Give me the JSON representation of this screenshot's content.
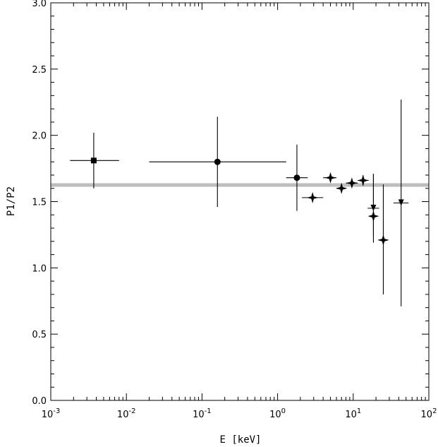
{
  "chart_data": {
    "type": "scatter",
    "xlabel": "E [keV]",
    "ylabel": "P1/P2",
    "xscale": "log",
    "xlim": [
      0.001,
      100
    ],
    "ylim": [
      0.0,
      3.0
    ],
    "x_tick_labels": [
      {
        "base": "10",
        "exp": "-3",
        "value": 0.001
      },
      {
        "base": "10",
        "exp": "-2",
        "value": 0.01
      },
      {
        "base": "10",
        "exp": "-1",
        "value": 0.1
      },
      {
        "base": "10",
        "exp": "0",
        "value": 1
      },
      {
        "base": "10",
        "exp": "1",
        "value": 10
      },
      {
        "base": "10",
        "exp": "2",
        "value": 100
      }
    ],
    "y_tick_labels": [
      "0.0",
      "0.5",
      "1.0",
      "1.5",
      "2.0",
      "2.5",
      "3.0"
    ],
    "y_tick_values": [
      0.0,
      0.5,
      1.0,
      1.5,
      2.0,
      2.5,
      3.0
    ],
    "reference_line": {
      "y": 1.625,
      "color": "#bdbdbd"
    },
    "grid": false,
    "series": [
      {
        "marker": "square",
        "points": [
          {
            "x": 0.0037,
            "y": 1.81,
            "xerr": [
              0.0018,
              0.008
            ],
            "yerr": [
              1.6,
              2.02
            ],
            "upper_limit": false
          }
        ]
      },
      {
        "marker": "circle",
        "points": [
          {
            "x": 0.16,
            "y": 1.8,
            "xerr": [
              0.02,
              1.3
            ],
            "yerr": [
              1.46,
              2.14
            ],
            "upper_limit": false
          },
          {
            "x": 1.8,
            "y": 1.68,
            "xerr": [
              1.3,
              2.5
            ],
            "yerr": [
              1.43,
              1.93
            ],
            "upper_limit": false
          }
        ]
      },
      {
        "marker": "star4",
        "points": [
          {
            "x": 2.9,
            "y": 1.53,
            "xerr": [
              2.1,
              4.0
            ],
            "yerr": [
              1.53,
              1.53
            ],
            "upper_limit": false
          },
          {
            "x": 5.0,
            "y": 1.68,
            "xerr": [
              4.0,
              6.0
            ],
            "yerr": [
              1.68,
              1.68
            ],
            "upper_limit": false
          },
          {
            "x": 7.0,
            "y": 1.6,
            "xerr": [
              6.0,
              8.0
            ],
            "yerr": [
              1.6,
              1.6
            ],
            "upper_limit": false
          },
          {
            "x": 9.6,
            "y": 1.64,
            "xerr": [
              8.0,
              11.5
            ],
            "yerr": [
              1.64,
              1.64
            ],
            "upper_limit": false
          },
          {
            "x": 13.5,
            "y": 1.66,
            "xerr": [
              11.5,
              16.0
            ],
            "yerr": [
              1.62,
              1.7
            ],
            "upper_limit": false
          },
          {
            "x": 18.5,
            "y": 1.39,
            "xerr": [
              18.5,
              18.5
            ],
            "yerr": [
              1.19,
              1.71
            ],
            "upper_limit": false
          },
          {
            "x": 25.0,
            "y": 1.21,
            "xerr": [
              21.5,
              29.0
            ],
            "yerr": [
              0.8,
              1.63
            ],
            "upper_limit": false
          }
        ]
      },
      {
        "marker": "down-arrow",
        "points": [
          {
            "x": 18.5,
            "y": 1.45,
            "xerr": [
              15.5,
              22.0
            ],
            "yerr": [
              1.24,
              1.71
            ],
            "upper_limit": true
          },
          {
            "x": 43.0,
            "y": 1.49,
            "xerr": [
              34.0,
              54.0
            ],
            "yerr": [
              0.71,
              2.27
            ],
            "upper_limit": true
          }
        ]
      }
    ]
  }
}
